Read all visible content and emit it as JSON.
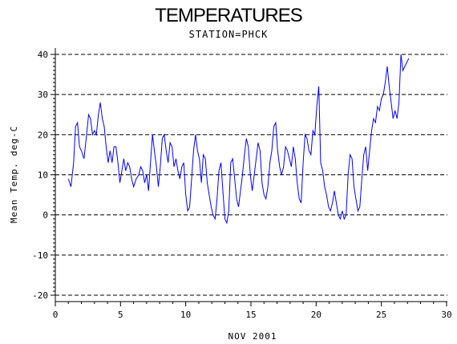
{
  "chart_data": {
    "type": "line",
    "title": "TEMPERATURES",
    "subtitle": "STATION=PHCK",
    "xlabel": "NOV 2001",
    "ylabel": "Mean Temp. deg-C",
    "xlim": [
      0,
      30
    ],
    "ylim": [
      -20,
      40
    ],
    "xticks": [
      "0",
      "5",
      "10",
      "15",
      "20",
      "25",
      "30"
    ],
    "yticks": [
      "-20",
      "-10",
      "0",
      "10",
      "20",
      "30",
      "40"
    ],
    "gridlines_y": [
      -20,
      -10,
      0,
      10,
      20,
      30,
      40
    ],
    "grid": "horizontal dashed",
    "series_color": "#0000ff",
    "series": [
      {
        "points": [
          [
            1.0,
            9
          ],
          [
            1.2,
            7
          ],
          [
            1.4,
            13
          ],
          [
            1.55,
            22
          ],
          [
            1.7,
            23
          ],
          [
            1.85,
            17
          ],
          [
            2.0,
            16
          ],
          [
            2.2,
            14
          ],
          [
            2.4,
            20
          ],
          [
            2.55,
            25
          ],
          [
            2.7,
            24
          ],
          [
            2.85,
            20
          ],
          [
            3.0,
            21
          ],
          [
            3.15,
            20
          ],
          [
            3.3,
            25
          ],
          [
            3.45,
            28
          ],
          [
            3.6,
            24
          ],
          [
            3.75,
            22
          ],
          [
            3.9,
            17
          ],
          [
            4.05,
            13
          ],
          [
            4.2,
            16
          ],
          [
            4.35,
            13
          ],
          [
            4.5,
            17
          ],
          [
            4.65,
            17
          ],
          [
            4.8,
            13
          ],
          [
            4.95,
            8
          ],
          [
            5.1,
            11
          ],
          [
            5.25,
            14
          ],
          [
            5.4,
            11
          ],
          [
            5.55,
            13
          ],
          [
            5.7,
            12
          ],
          [
            5.85,
            9
          ],
          [
            6.0,
            7
          ],
          [
            6.2,
            9
          ],
          [
            6.4,
            10
          ],
          [
            6.55,
            12
          ],
          [
            6.7,
            11
          ],
          [
            6.85,
            8
          ],
          [
            7.0,
            10
          ],
          [
            7.15,
            6
          ],
          [
            7.3,
            13
          ],
          [
            7.45,
            20
          ],
          [
            7.6,
            16
          ],
          [
            7.75,
            12
          ],
          [
            7.9,
            7
          ],
          [
            8.05,
            12
          ],
          [
            8.2,
            19
          ],
          [
            8.35,
            20
          ],
          [
            8.5,
            16
          ],
          [
            8.65,
            13
          ],
          [
            8.8,
            18
          ],
          [
            8.95,
            17
          ],
          [
            9.1,
            12
          ],
          [
            9.25,
            14
          ],
          [
            9.4,
            11
          ],
          [
            9.55,
            9
          ],
          [
            9.7,
            12
          ],
          [
            9.85,
            13
          ],
          [
            10.0,
            5
          ],
          [
            10.15,
            1
          ],
          [
            10.3,
            2
          ],
          [
            10.45,
            9
          ],
          [
            10.6,
            16
          ],
          [
            10.75,
            20
          ],
          [
            10.9,
            16
          ],
          [
            11.05,
            14
          ],
          [
            11.2,
            8
          ],
          [
            11.35,
            15
          ],
          [
            11.5,
            14
          ],
          [
            11.65,
            8
          ],
          [
            11.8,
            5
          ],
          [
            11.95,
            2
          ],
          [
            12.1,
            0
          ],
          [
            12.25,
            -1
          ],
          [
            12.4,
            4
          ],
          [
            12.55,
            11
          ],
          [
            12.7,
            13
          ],
          [
            12.85,
            6
          ],
          [
            13.0,
            -1
          ],
          [
            13.15,
            -2
          ],
          [
            13.3,
            1
          ],
          [
            13.45,
            13
          ],
          [
            13.6,
            14
          ],
          [
            13.75,
            9
          ],
          [
            13.9,
            4
          ],
          [
            14.05,
            2
          ],
          [
            14.2,
            6
          ],
          [
            14.35,
            10
          ],
          [
            14.5,
            15
          ],
          [
            14.65,
            19
          ],
          [
            14.8,
            17
          ],
          [
            14.95,
            10
          ],
          [
            15.1,
            6
          ],
          [
            15.25,
            10
          ],
          [
            15.4,
            14
          ],
          [
            15.55,
            18
          ],
          [
            15.7,
            16
          ],
          [
            15.85,
            8
          ],
          [
            16.0,
            5
          ],
          [
            16.15,
            4
          ],
          [
            16.3,
            7
          ],
          [
            16.45,
            13
          ],
          [
            16.6,
            16
          ],
          [
            16.75,
            22
          ],
          [
            16.9,
            23
          ],
          [
            17.05,
            16
          ],
          [
            17.2,
            12
          ],
          [
            17.35,
            10
          ],
          [
            17.5,
            12
          ],
          [
            17.65,
            17
          ],
          [
            17.8,
            16
          ],
          [
            17.95,
            14
          ],
          [
            18.1,
            12
          ],
          [
            18.25,
            17
          ],
          [
            18.4,
            14
          ],
          [
            18.55,
            8
          ],
          [
            18.7,
            4
          ],
          [
            18.85,
            3
          ],
          [
            19.0,
            13
          ],
          [
            19.15,
            20
          ],
          [
            19.3,
            19
          ],
          [
            19.45,
            16
          ],
          [
            19.6,
            15
          ],
          [
            19.75,
            21
          ],
          [
            19.9,
            20
          ],
          [
            20.05,
            27
          ],
          [
            20.2,
            32
          ],
          [
            20.35,
            13
          ],
          [
            20.5,
            11
          ],
          [
            20.65,
            7
          ],
          [
            20.8,
            5
          ],
          [
            20.95,
            2
          ],
          [
            21.1,
            1
          ],
          [
            21.25,
            3
          ],
          [
            21.4,
            6
          ],
          [
            21.55,
            3
          ],
          [
            21.7,
            0
          ],
          [
            21.85,
            -1
          ],
          [
            22.0,
            1
          ],
          [
            22.15,
            -1
          ],
          [
            22.3,
            0
          ],
          [
            22.45,
            10
          ],
          [
            22.6,
            15
          ],
          [
            22.75,
            14
          ],
          [
            22.9,
            7
          ],
          [
            23.05,
            4
          ],
          [
            23.2,
            1
          ],
          [
            23.35,
            2
          ],
          [
            23.5,
            9
          ],
          [
            23.65,
            15
          ],
          [
            23.8,
            17
          ],
          [
            23.95,
            11
          ],
          [
            24.1,
            16
          ],
          [
            24.25,
            21
          ],
          [
            24.4,
            24
          ],
          [
            24.55,
            23
          ],
          [
            24.7,
            27
          ],
          [
            24.85,
            26
          ],
          [
            25.0,
            29
          ],
          [
            25.15,
            30
          ],
          [
            25.3,
            33
          ],
          [
            25.45,
            37
          ],
          [
            25.6,
            32
          ],
          [
            25.75,
            28
          ],
          [
            25.9,
            24
          ],
          [
            26.05,
            26
          ],
          [
            26.2,
            24
          ],
          [
            26.35,
            28
          ],
          [
            26.5,
            40
          ],
          [
            26.65,
            36
          ],
          [
            26.8,
            37
          ],
          [
            26.95,
            38
          ],
          [
            27.1,
            39
          ]
        ]
      }
    ]
  }
}
